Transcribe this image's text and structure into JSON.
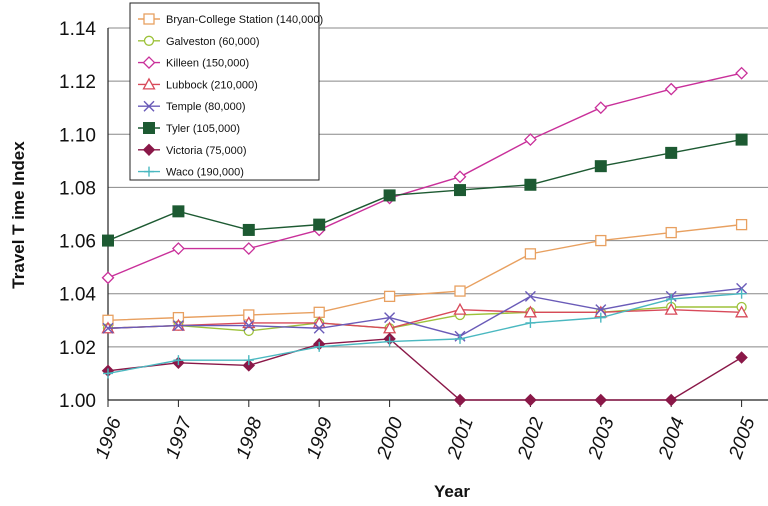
{
  "chart_data": {
    "type": "line",
    "xlabel": "Year",
    "ylabel": "Travel T ime Index",
    "ylim": [
      1.0,
      1.14
    ],
    "yticks": [
      "1.00",
      "1.02",
      "1.04",
      "1.06",
      "1.08",
      "1.10",
      "1.12",
      "1.14"
    ],
    "categories": [
      "1996",
      "1997",
      "1998",
      "1999",
      "2000",
      "2001",
      "2002",
      "2003",
      "2004",
      "2005"
    ],
    "grid": "horizontal",
    "legend_position": "top-left",
    "series": [
      {
        "name": "Bryan-College Station (140,000)",
        "color": "#e8a060",
        "marker": "square-open",
        "values": [
          1.03,
          1.031,
          1.032,
          1.033,
          1.039,
          1.041,
          1.055,
          1.06,
          1.063,
          1.066
        ]
      },
      {
        "name": "Galveston (60,000)",
        "color": "#9dc23a",
        "marker": "circle-open",
        "values": [
          1.027,
          1.028,
          1.026,
          1.029,
          1.027,
          1.032,
          1.033,
          1.033,
          1.035,
          1.035
        ]
      },
      {
        "name": "Killeen (150,000)",
        "color": "#c9309a",
        "marker": "diamond-open",
        "values": [
          1.046,
          1.057,
          1.057,
          1.064,
          1.076,
          1.084,
          1.098,
          1.11,
          1.117,
          1.123
        ]
      },
      {
        "name": "Lubbock (210,000)",
        "color": "#d84a5a",
        "marker": "triangle-open",
        "values": [
          1.027,
          1.028,
          1.029,
          1.029,
          1.027,
          1.034,
          1.033,
          1.033,
          1.034,
          1.033
        ]
      },
      {
        "name": "Temple (80,000)",
        "color": "#6a5bb8",
        "marker": "x",
        "values": [
          1.027,
          1.028,
          1.028,
          1.027,
          1.031,
          1.024,
          1.039,
          1.034,
          1.039,
          1.042
        ]
      },
      {
        "name": "Tyler (105,000)",
        "color": "#1d5a32",
        "marker": "square-filled",
        "values": [
          1.06,
          1.071,
          1.064,
          1.066,
          1.077,
          1.079,
          1.081,
          1.088,
          1.093,
          1.098
        ]
      },
      {
        "name": "Victoria (75,000)",
        "color": "#8a1848",
        "marker": "diamond-filled",
        "values": [
          1.011,
          1.014,
          1.013,
          1.021,
          1.023,
          1.0,
          1.0,
          1.0,
          1.0,
          1.016
        ]
      },
      {
        "name": "Waco (190,000)",
        "color": "#4ab8c0",
        "marker": "plus",
        "values": [
          1.01,
          1.015,
          1.015,
          1.02,
          1.022,
          1.023,
          1.029,
          1.031,
          1.038,
          1.04
        ]
      }
    ]
  }
}
